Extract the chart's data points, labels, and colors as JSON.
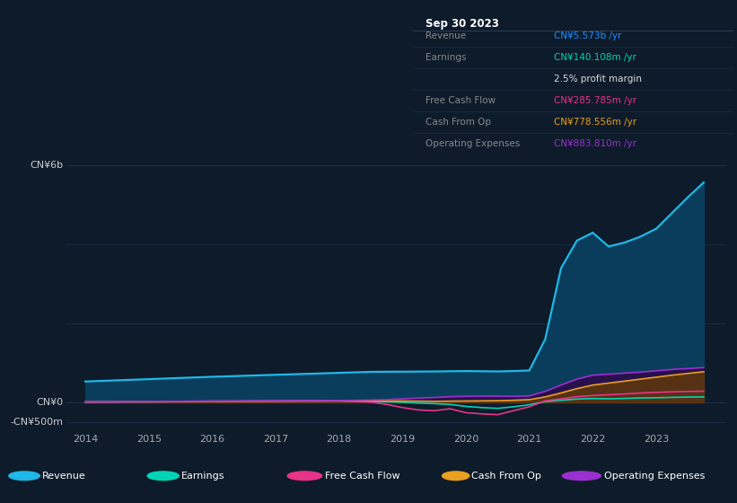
{
  "bg_color": "#0d1b2a",
  "grid_color": "#1e3350",
  "years": [
    2014.0,
    2014.25,
    2014.5,
    2014.75,
    2015.0,
    2015.25,
    2015.5,
    2015.75,
    2016.0,
    2016.25,
    2016.5,
    2016.75,
    2017.0,
    2017.25,
    2017.5,
    2017.75,
    2018.0,
    2018.25,
    2018.5,
    2018.75,
    2019.0,
    2019.25,
    2019.5,
    2019.75,
    2020.0,
    2020.25,
    2020.5,
    2020.75,
    2021.0,
    2021.25,
    2021.5,
    2021.75,
    2022.0,
    2022.25,
    2022.5,
    2022.75,
    2023.0,
    2023.25,
    2023.5,
    2023.75
  ],
  "revenue": [
    530,
    545,
    560,
    575,
    590,
    605,
    620,
    635,
    650,
    662,
    675,
    688,
    700,
    712,
    725,
    737,
    750,
    762,
    775,
    778,
    780,
    782,
    785,
    790,
    795,
    790,
    785,
    795,
    810,
    1600,
    3400,
    4100,
    4300,
    3950,
    4050,
    4200,
    4400,
    4800,
    5200,
    5573
  ],
  "earnings": [
    8,
    10,
    12,
    14,
    16,
    18,
    20,
    22,
    24,
    26,
    28,
    30,
    32,
    34,
    36,
    38,
    40,
    35,
    28,
    18,
    5,
    -15,
    -30,
    -50,
    -100,
    -130,
    -150,
    -110,
    -60,
    20,
    55,
    85,
    100,
    92,
    102,
    112,
    118,
    128,
    136,
    140
  ],
  "fcf": [
    5,
    7,
    9,
    11,
    13,
    15,
    17,
    19,
    21,
    23,
    25,
    27,
    29,
    31,
    33,
    35,
    37,
    25,
    10,
    -50,
    -130,
    -190,
    -210,
    -160,
    -260,
    -290,
    -310,
    -210,
    -110,
    40,
    90,
    145,
    175,
    195,
    215,
    238,
    255,
    268,
    278,
    285
  ],
  "cfo": [
    15,
    17,
    19,
    21,
    23,
    25,
    27,
    29,
    31,
    33,
    35,
    37,
    39,
    41,
    43,
    45,
    47,
    45,
    43,
    40,
    36,
    32,
    28,
    32,
    36,
    40,
    44,
    55,
    70,
    140,
    240,
    350,
    440,
    490,
    540,
    590,
    640,
    690,
    735,
    778
  ],
  "opex": [
    18,
    20,
    22,
    24,
    26,
    28,
    30,
    32,
    34,
    36,
    38,
    40,
    42,
    44,
    46,
    48,
    50,
    55,
    62,
    72,
    90,
    110,
    125,
    145,
    155,
    162,
    158,
    155,
    165,
    280,
    440,
    590,
    690,
    715,
    742,
    768,
    800,
    835,
    858,
    883
  ],
  "revenue_line_color": "#1fb8e8",
  "revenue_fill_color": "#0a3d5c",
  "earnings_color": "#00d4b4",
  "fcf_color": "#e8338a",
  "cfo_color": "#e8a020",
  "opex_color": "#9b30d0",
  "opex_fill_color": "#2a0d4a",
  "cfo_fill_color": "#5c3510",
  "ylim_min": -700,
  "ylim_max": 6500,
  "xlim_min": 2013.7,
  "xlim_max": 2024.1,
  "hgrid_vals": [
    -500,
    0,
    2000,
    4000,
    6000
  ],
  "xticks": [
    2014,
    2015,
    2016,
    2017,
    2018,
    2019,
    2020,
    2021,
    2022,
    2023
  ],
  "ylabel_positions": [
    {
      "val": 6000,
      "label": "CN¥6b"
    },
    {
      "val": 0,
      "label": "CN¥0"
    },
    {
      "val": -500,
      "label": "-CN¥500m"
    }
  ],
  "info_box": {
    "title": "Sep 30 2023",
    "rows": [
      {
        "label": "Revenue",
        "value": "CN¥5.573b /yr",
        "vc": "#1e90ff",
        "bold_val": true
      },
      {
        "label": "Earnings",
        "value": "CN¥140.108m /yr",
        "vc": "#00d4b4",
        "bold_val": true
      },
      {
        "label": "",
        "value": "2.5% profit margin",
        "vc": "#dddddd",
        "bold_val": false
      },
      {
        "label": "Free Cash Flow",
        "value": "CN¥285.785m /yr",
        "vc": "#e8338a",
        "bold_val": true
      },
      {
        "label": "Cash From Op",
        "value": "CN¥778.556m /yr",
        "vc": "#e8a020",
        "bold_val": true
      },
      {
        "label": "Operating Expenses",
        "value": "CN¥883.810m /yr",
        "vc": "#9b30d0",
        "bold_val": true
      }
    ]
  },
  "legend": [
    {
      "label": "Revenue",
      "color": "#1fb8e8"
    },
    {
      "label": "Earnings",
      "color": "#00d4b4"
    },
    {
      "label": "Free Cash Flow",
      "color": "#e8338a"
    },
    {
      "label": "Cash From Op",
      "color": "#e8a020"
    },
    {
      "label": "Operating Expenses",
      "color": "#9b30d0"
    }
  ]
}
